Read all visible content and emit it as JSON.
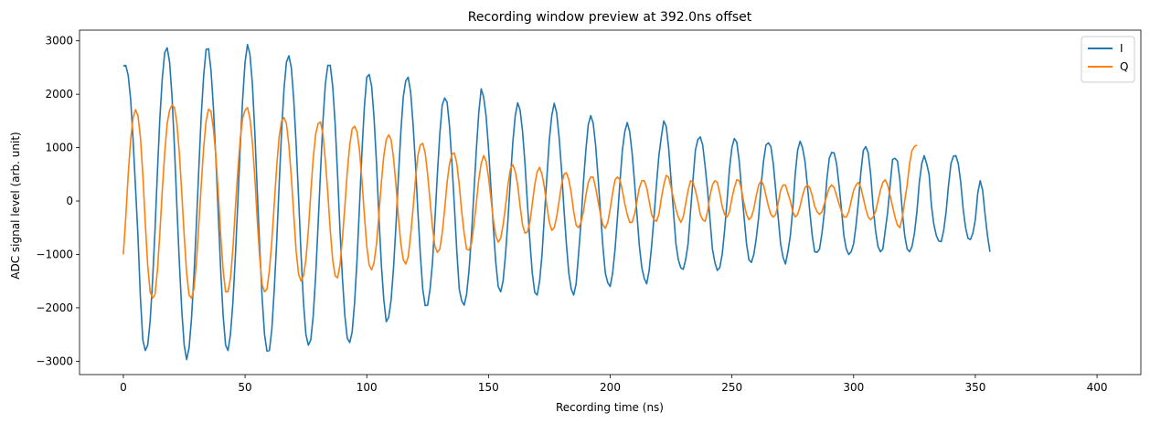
{
  "chart_data": {
    "type": "line",
    "title": "Recording window preview at 392.0ns offset",
    "xlabel": "Recording time (ns)",
    "ylabel": "ADC signal level (arb. unit)",
    "xlim": [
      -18,
      418
    ],
    "ylim": [
      -3250,
      3200
    ],
    "xticks": [
      0,
      50,
      100,
      150,
      200,
      250,
      300,
      350,
      400
    ],
    "xtick_labels": [
      "0",
      "50",
      "100",
      "150",
      "200",
      "250",
      "300",
      "350",
      "400"
    ],
    "yticks": [
      -3000,
      -2000,
      -1000,
      0,
      1000,
      2000,
      3000
    ],
    "ytick_labels": [
      "−3000",
      "−2000",
      "−1000",
      "0",
      "1000",
      "2000",
      "3000"
    ],
    "grid": false,
    "legend_position": "top-right",
    "x_start": 0,
    "x_step": 1,
    "series": [
      {
        "name": "I",
        "color": "#1f77b4",
        "values": [
          2530,
          2540,
          2350,
          1900,
          1150,
          250,
          -650,
          -1800,
          -2600,
          -2800,
          -2700,
          -2250,
          -1500,
          -550,
          550,
          1550,
          2300,
          2780,
          2870,
          2600,
          1950,
          1000,
          -100,
          -1150,
          -2050,
          -2700,
          -2970,
          -2750,
          -2200,
          -1400,
          -450,
          600,
          1600,
          2350,
          2840,
          2850,
          2450,
          1750,
          800,
          -250,
          -1300,
          -2150,
          -2700,
          -2800,
          -2500,
          -1900,
          -1050,
          -50,
          1000,
          1900,
          2600,
          2930,
          2750,
          2200,
          1300,
          200,
          -850,
          -1800,
          -2500,
          -2810,
          -2800,
          -2400,
          -1650,
          -750,
          300,
          1300,
          2100,
          2600,
          2720,
          2500,
          1900,
          1050,
          50,
          -1000,
          -1900,
          -2500,
          -2700,
          -2600,
          -2150,
          -1400,
          -450,
          550,
          1500,
          2200,
          2540,
          2540,
          2150,
          1450,
          500,
          -550,
          -1450,
          -2150,
          -2570,
          -2650,
          -2450,
          -1900,
          -1100,
          -100,
          900,
          1750,
          2320,
          2370,
          2150,
          1550,
          700,
          -300,
          -1200,
          -1850,
          -2260,
          -2180,
          -1850,
          -1250,
          -450,
          450,
          1300,
          1950,
          2250,
          2320,
          2050,
          1450,
          700,
          -200,
          -1000,
          -1650,
          -1960,
          -1950,
          -1650,
          -1150,
          -350,
          500,
          1250,
          1800,
          1930,
          1850,
          1400,
          700,
          -100,
          -950,
          -1650,
          -1870,
          -1950,
          -1750,
          -1300,
          -650,
          150,
          950,
          1650,
          2100,
          1950,
          1600,
          1000,
          250,
          -500,
          -1150,
          -1600,
          -1700,
          -1500,
          -1000,
          -350,
          400,
          1100,
          1600,
          1840,
          1700,
          1300,
          700,
          -50,
          -750,
          -1350,
          -1710,
          -1760,
          -1500,
          -1000,
          -250,
          450,
          1150,
          1600,
          1830,
          1650,
          1200,
          600,
          -150,
          -800,
          -1350,
          -1650,
          -1760,
          -1550,
          -1000,
          -400,
          350,
          950,
          1430,
          1600,
          1460,
          1050,
          450,
          -200,
          -850,
          -1350,
          -1530,
          -1600,
          -1350,
          -900,
          -300,
          350,
          950,
          1300,
          1470,
          1300,
          900,
          350,
          -250,
          -850,
          -1250,
          -1450,
          -1550,
          -1300,
          -850,
          -300,
          300,
          850,
          1200,
          1500,
          1400,
          1000,
          400,
          -200,
          -800,
          -1100,
          -1250,
          -1280,
          -1100,
          -800,
          -200,
          400,
          950,
          1150,
          1200,
          1050,
          650,
          200,
          -350,
          -900,
          -1150,
          -1300,
          -1250,
          -1000,
          -550,
          0,
          600,
          1000,
          1170,
          1100,
          750,
          200,
          -300,
          -800,
          -1100,
          -1150,
          -1000,
          -700,
          -300,
          300,
          750,
          1050,
          1090,
          1020,
          700,
          200,
          -300,
          -800,
          -1050,
          -1180,
          -950,
          -650,
          -150,
          500,
          950,
          1120,
          1000,
          750,
          300,
          -200,
          -650,
          -950,
          -960,
          -900,
          -600,
          -200,
          400,
          800,
          910,
          900,
          700,
          300,
          -150,
          -650,
          -900,
          -1000,
          -950,
          -800,
          -450,
          0,
          550,
          950,
          1020,
          900,
          500,
          -100,
          -550,
          -850,
          -950,
          -900,
          -550,
          -200,
          300,
          780,
          800,
          750,
          400,
          -200,
          -650,
          -900,
          -950,
          -850,
          -600,
          -200,
          350,
          700,
          850,
          700,
          500,
          -100,
          -450,
          -650,
          -750,
          -760,
          -550,
          -200,
          300,
          700,
          840,
          850,
          700,
          350,
          -150,
          -500,
          -700,
          -720,
          -600,
          -350,
          150,
          380,
          200,
          -250,
          -650,
          -950
        ]
      },
      {
        "name": "Q",
        "color": "#ff7f0e",
        "values": [
          -1000,
          -300,
          500,
          1150,
          1560,
          1710,
          1600,
          1200,
          500,
          -400,
          -1200,
          -1700,
          -1820,
          -1750,
          -1300,
          -600,
          200,
          900,
          1450,
          1700,
          1800,
          1750,
          1450,
          900,
          150,
          -650,
          -1350,
          -1760,
          -1820,
          -1650,
          -1150,
          -450,
          300,
          1000,
          1500,
          1720,
          1680,
          1350,
          850,
          150,
          -650,
          -1300,
          -1700,
          -1700,
          -1450,
          -900,
          -150,
          550,
          1150,
          1550,
          1700,
          1750,
          1550,
          1100,
          450,
          -350,
          -1050,
          -1560,
          -1700,
          -1650,
          -1300,
          -750,
          -50,
          650,
          1200,
          1500,
          1560,
          1450,
          1050,
          450,
          -250,
          -950,
          -1370,
          -1500,
          -1400,
          -1100,
          -550,
          150,
          800,
          1250,
          1450,
          1480,
          1250,
          750,
          150,
          -550,
          -1100,
          -1400,
          -1440,
          -1200,
          -700,
          -100,
          550,
          1050,
          1350,
          1400,
          1300,
          950,
          400,
          -250,
          -850,
          -1200,
          -1290,
          -1150,
          -800,
          -250,
          350,
          850,
          1150,
          1240,
          1150,
          800,
          300,
          -300,
          -800,
          -1100,
          -1180,
          -1050,
          -650,
          -150,
          400,
          850,
          1050,
          1080,
          900,
          500,
          0,
          -500,
          -850,
          -960,
          -900,
          -600,
          -150,
          350,
          700,
          880,
          900,
          700,
          300,
          -200,
          -600,
          -900,
          -920,
          -800,
          -450,
          -50,
          400,
          700,
          850,
          750,
          450,
          50,
          -350,
          -650,
          -770,
          -700,
          -450,
          -100,
          300,
          600,
          680,
          550,
          300,
          -100,
          -450,
          -600,
          -580,
          -400,
          -50,
          300,
          550,
          630,
          500,
          250,
          -100,
          -400,
          -550,
          -500,
          -300,
          0,
          300,
          500,
          530,
          400,
          150,
          -200,
          -450,
          -500,
          -400,
          -200,
          100,
          350,
          450,
          450,
          250,
          0,
          -250,
          -450,
          -510,
          -400,
          -150,
          150,
          400,
          450,
          400,
          200,
          -50,
          -250,
          -400,
          -400,
          -250,
          0,
          250,
          380,
          380,
          250,
          0,
          -250,
          -350,
          -380,
          -250,
          50,
          300,
          480,
          450,
          250,
          50,
          -150,
          -300,
          -400,
          -300,
          -50,
          200,
          380,
          350,
          200,
          0,
          -250,
          -350,
          -380,
          -200,
          100,
          300,
          380,
          350,
          150,
          -100,
          -250,
          -300,
          -200,
          50,
          250,
          400,
          380,
          200,
          -50,
          -250,
          -350,
          -300,
          -150,
          100,
          300,
          380,
          300,
          100,
          -100,
          -250,
          -300,
          -250,
          -50,
          200,
          300,
          300,
          150,
          0,
          -200,
          -300,
          -250,
          -100,
          100,
          250,
          300,
          250,
          100,
          -100,
          -200,
          -250,
          -200,
          -50,
          100,
          250,
          300,
          250,
          100,
          -50,
          -200,
          -300,
          -300,
          -200,
          0,
          200,
          300,
          350,
          250,
          50,
          -150,
          -300,
          -350,
          -300,
          -200,
          0,
          200,
          350,
          400,
          300,
          100,
          -100,
          -300,
          -450,
          -500,
          -300,
          0,
          300,
          700,
          950,
          1020,
          1050
        ]
      }
    ]
  }
}
